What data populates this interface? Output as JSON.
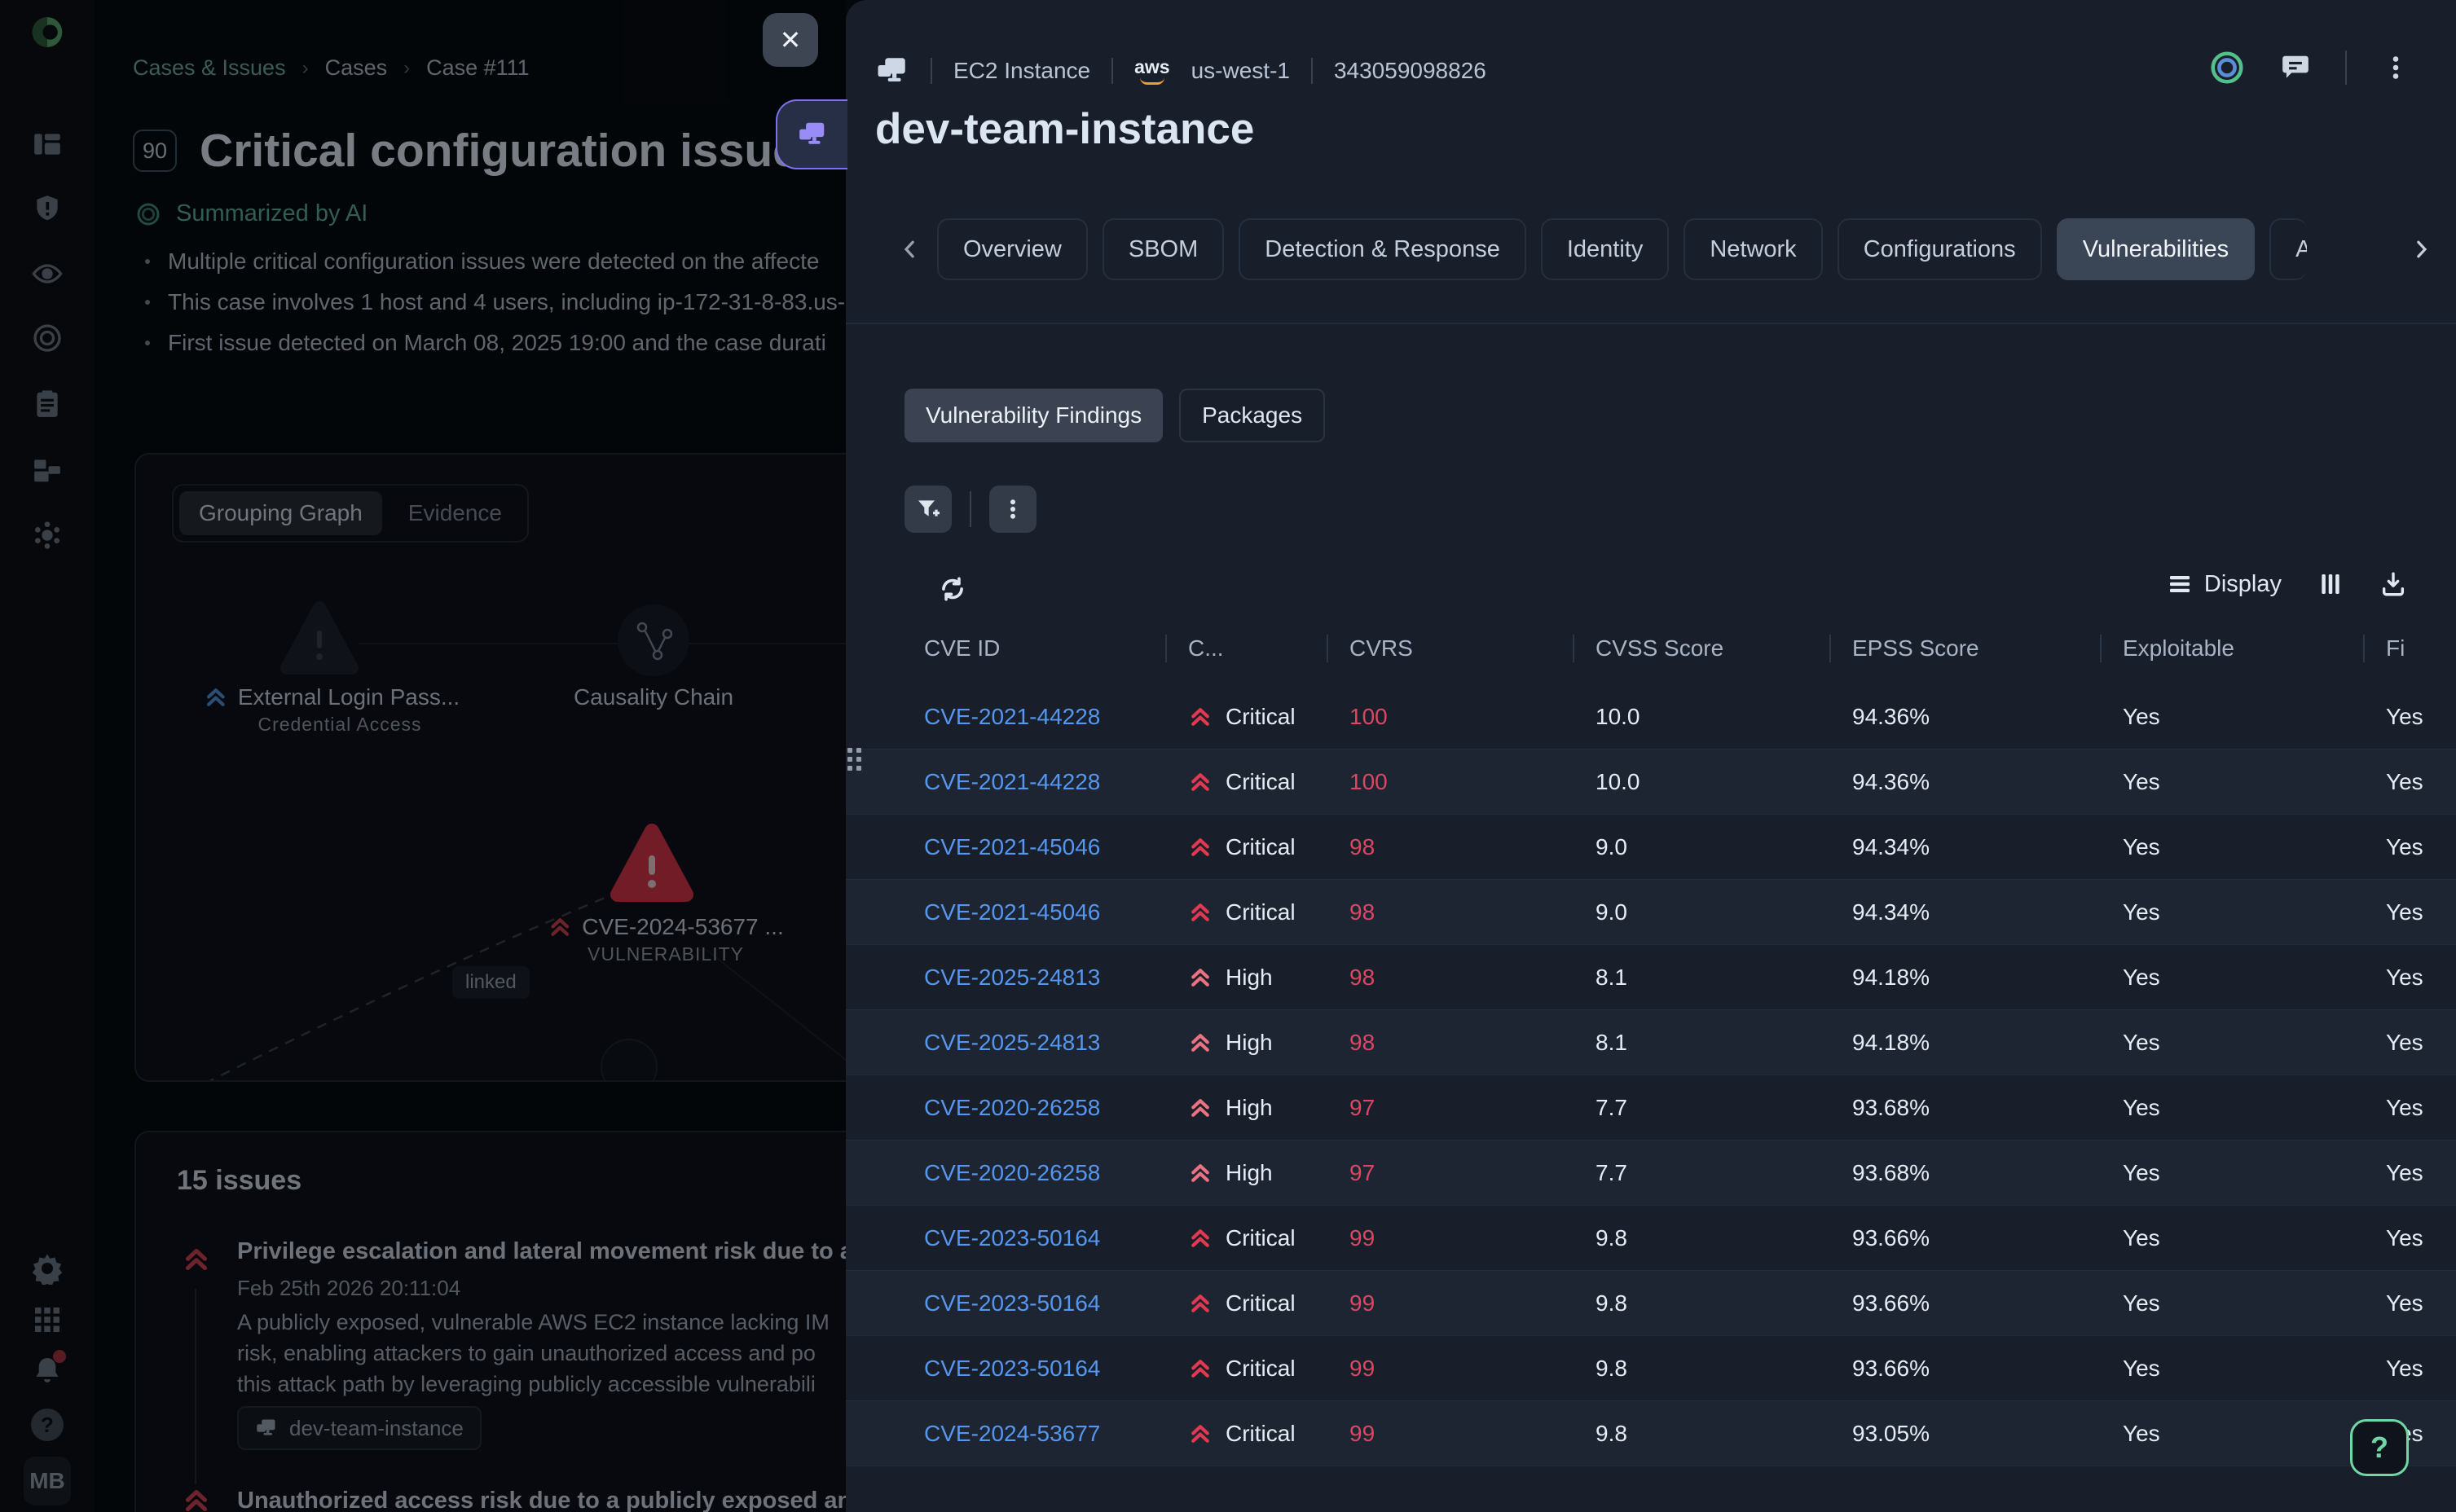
{
  "colors": {
    "critical_red": "#e23950",
    "high_salmon": "#ea7283",
    "cvrs_red": "#de4560",
    "link_blue": "#5596ef",
    "help_green": "#6fd7a4",
    "accent_purple": "#9a8cf7",
    "aws_orange": "#f19a37",
    "ai_teal": "#58ab97"
  },
  "sidebar": {
    "logo": "brand-logo",
    "top_icons": [
      "dashboard-icon",
      "shield-alert-icon",
      "eye-icon",
      "target-icon",
      "clipboard-icon",
      "assets-icon",
      "threat-icon"
    ],
    "bottom_icons": [
      "gear-icon",
      "apps-grid-icon",
      "bell-icon",
      "help-icon"
    ],
    "help_glyph": "?",
    "avatar": "MB"
  },
  "case_panel": {
    "breadcrumb": [
      "Cases & Issues",
      "Cases",
      "Case #111"
    ],
    "badge": "90",
    "title": "Critical configuration issues",
    "ai_summary": {
      "label": "Summarized by AI",
      "bullets": [
        "Multiple critical configuration issues were detected on the affecte",
        "This case involves 1 host and 4 users, including ip-172-31-8-83.us-",
        "First issue detected on March 08, 2025 19:00 and the case durati"
      ]
    },
    "graph": {
      "tabs": [
        "Grouping Graph",
        "Evidence"
      ],
      "active_tab": "Grouping Graph",
      "nodes": [
        {
          "label": "External Login Pass...",
          "sublabel": "Credential Access",
          "severity": "high"
        },
        {
          "label": "Causality Chain",
          "sublabel": "",
          "severity": ""
        },
        {
          "label": "CVE-2024-53677 ...",
          "sublabel": "VULNERABILITY",
          "severity": "critical"
        }
      ],
      "edge_label": "linked"
    },
    "issues": {
      "heading": "15 issues",
      "item1": {
        "severity": "critical",
        "title": "Privilege escalation and lateral movement risk due to a pub",
        "timestamp": "Feb 25th 2026 20:11:04",
        "description_lines": [
          "A publicly exposed, vulnerable AWS EC2 instance lacking IM",
          "risk, enabling attackers to gain unauthorized access and po",
          "this attack path by leveraging publicly accessible vulnerabili"
        ],
        "tag": "dev-team-instance"
      },
      "item2": {
        "severity": "critical",
        "title": "Unauthorized access risk due to a publicly exposed and vu"
      }
    }
  },
  "drawer": {
    "close_glyph": "✕",
    "asset_type": "EC2 Instance",
    "aws_label": "aws",
    "cloud_region": "us-west-1",
    "account_id": "343059098826",
    "title": "dev-team-instance",
    "tabs": [
      "Overview",
      "SBOM",
      "Detection & Response",
      "Identity",
      "Network",
      "Configurations",
      "Vulnerabilities",
      "A"
    ],
    "active_tab": "Vulnerabilities",
    "view_tabs": [
      "Vulnerability Findings",
      "Packages"
    ],
    "active_view_tab": "Vulnerability Findings",
    "toolbar": {
      "display_label": "Display"
    },
    "table": {
      "columns": [
        "CVE ID",
        "C...",
        "CVRS",
        "CVSS Score",
        "EPSS Score",
        "Exploitable",
        "Fi"
      ],
      "rows": [
        {
          "cve": "CVE-2021-44228",
          "severity": "Critical",
          "cvrs": "100",
          "cvss": "10.0",
          "epss": "94.36%",
          "exploitable": "Yes",
          "fix": "Yes"
        },
        {
          "cve": "CVE-2021-44228",
          "severity": "Critical",
          "cvrs": "100",
          "cvss": "10.0",
          "epss": "94.36%",
          "exploitable": "Yes",
          "fix": "Yes"
        },
        {
          "cve": "CVE-2021-45046",
          "severity": "Critical",
          "cvrs": "98",
          "cvss": "9.0",
          "epss": "94.34%",
          "exploitable": "Yes",
          "fix": "Yes"
        },
        {
          "cve": "CVE-2021-45046",
          "severity": "Critical",
          "cvrs": "98",
          "cvss": "9.0",
          "epss": "94.34%",
          "exploitable": "Yes",
          "fix": "Yes"
        },
        {
          "cve": "CVE-2025-24813",
          "severity": "High",
          "cvrs": "98",
          "cvss": "8.1",
          "epss": "94.18%",
          "exploitable": "Yes",
          "fix": "Yes"
        },
        {
          "cve": "CVE-2025-24813",
          "severity": "High",
          "cvrs": "98",
          "cvss": "8.1",
          "epss": "94.18%",
          "exploitable": "Yes",
          "fix": "Yes"
        },
        {
          "cve": "CVE-2020-26258",
          "severity": "High",
          "cvrs": "97",
          "cvss": "7.7",
          "epss": "93.68%",
          "exploitable": "Yes",
          "fix": "Yes"
        },
        {
          "cve": "CVE-2020-26258",
          "severity": "High",
          "cvrs": "97",
          "cvss": "7.7",
          "epss": "93.68%",
          "exploitable": "Yes",
          "fix": "Yes"
        },
        {
          "cve": "CVE-2023-50164",
          "severity": "Critical",
          "cvrs": "99",
          "cvss": "9.8",
          "epss": "93.66%",
          "exploitable": "Yes",
          "fix": "Yes"
        },
        {
          "cve": "CVE-2023-50164",
          "severity": "Critical",
          "cvrs": "99",
          "cvss": "9.8",
          "epss": "93.66%",
          "exploitable": "Yes",
          "fix": "Yes"
        },
        {
          "cve": "CVE-2023-50164",
          "severity": "Critical",
          "cvrs": "99",
          "cvss": "9.8",
          "epss": "93.66%",
          "exploitable": "Yes",
          "fix": "Yes"
        },
        {
          "cve": "CVE-2024-53677",
          "severity": "Critical",
          "cvrs": "99",
          "cvss": "9.8",
          "epss": "93.05%",
          "exploitable": "Yes",
          "fix": "Yes"
        }
      ]
    }
  },
  "help_button": {
    "glyph": "?"
  }
}
